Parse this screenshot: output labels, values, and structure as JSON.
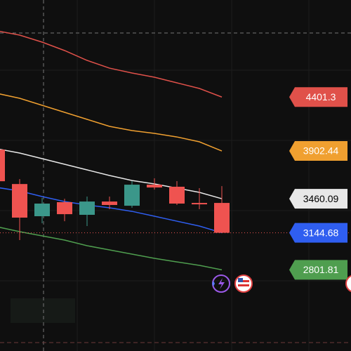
{
  "chart_data": {
    "type": "candlestick",
    "ylim": [
      2050,
      5300
    ],
    "candles": {
      "open": [
        3915,
        3596,
        3298,
        3428,
        3311,
        3434,
        3395,
        3590,
        3571,
        3421,
        3421
      ],
      "high": [
        3915,
        3642,
        3467,
        3460,
        3480,
        3480,
        3623,
        3649,
        3623,
        3558,
        3577
      ],
      "low": [
        3622,
        3077,
        3233,
        3252,
        3207,
        3363,
        3376,
        3545,
        3402,
        3363,
        3144.68
      ],
      "close": [
        3622,
        3285,
        3415,
        3317,
        3434,
        3402,
        3590,
        3564,
        3415,
        3408,
        3144.68
      ],
      "up_color": "#3b978a",
      "down_color": "#ef5350"
    },
    "series": [
      {
        "color": "#e0514a",
        "values": [
          5014,
          4975,
          4910,
          4832,
          4741,
          4669,
          4624,
          4585,
          4533,
          4481,
          4401.3
        ]
      },
      {
        "color": "#f0a030",
        "values": [
          4435,
          4390,
          4325,
          4260,
          4195,
          4130,
          4091,
          4065,
          4032,
          3987,
          3902.44
        ]
      },
      {
        "color": "#e8e8e8",
        "values": [
          3922,
          3883,
          3831,
          3779,
          3727,
          3675,
          3629,
          3597,
          3558,
          3519,
          3460.09
        ]
      },
      {
        "color": "#2f5ef0",
        "values": [
          3564,
          3532,
          3480,
          3434,
          3402,
          3376,
          3343,
          3298,
          3252,
          3207,
          3144.68
        ]
      },
      {
        "color": "#4f9e4f",
        "values": [
          3200,
          3155,
          3116,
          3077,
          3025,
          2986,
          2947,
          2908,
          2875,
          2843,
          2801.81
        ]
      }
    ]
  }
}
